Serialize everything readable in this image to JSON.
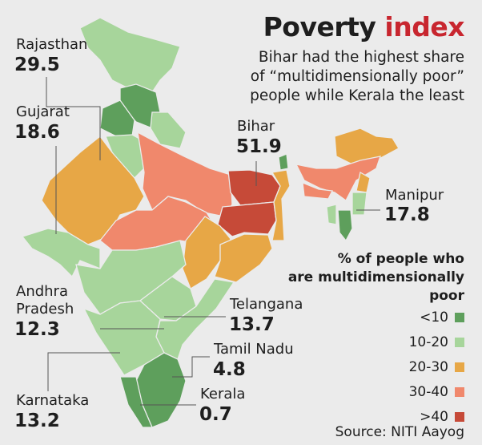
{
  "title": {
    "part1": "Poverty",
    "part2": "index"
  },
  "subtitle": [
    "Bihar had the highest share",
    "of “multidimensionally poor”",
    "people while Kerala the least"
  ],
  "colors": {
    "lt10": "#5e9f5c",
    "10-20": "#a7d59b",
    "20-30": "#e7a746",
    "30-40": "#f0886c",
    "gt40": "#c64a38",
    "accent": "#c8262f"
  },
  "callouts": [
    {
      "state": "Rajasthan",
      "value": "29.5"
    },
    {
      "state": "Gujarat",
      "value": "18.6"
    },
    {
      "state": "Bihar",
      "value": "51.9"
    },
    {
      "state": "Manipur",
      "value": "17.8"
    },
    {
      "state": "Andhra Pradesh",
      "state_lines": [
        "Andhra",
        "Pradesh"
      ],
      "value": "12.3"
    },
    {
      "state": "Telangana",
      "value": "13.7"
    },
    {
      "state": "Tamil Nadu",
      "value": "4.8"
    },
    {
      "state": "Kerala",
      "value": "0.7"
    },
    {
      "state": "Karnataka",
      "value": "13.2"
    }
  ],
  "legend": {
    "title": [
      "% of people who",
      "are multidimensionally",
      "poor"
    ],
    "items": [
      {
        "label": "<10",
        "color": "#5e9f5c"
      },
      {
        "label": "10-20",
        "color": "#a7d59b"
      },
      {
        "label": "20-30",
        "color": "#e7a746"
      },
      {
        "label": "30-40",
        "color": "#f0886c"
      },
      {
        "label": ">40",
        "color": "#c64a38"
      }
    ]
  },
  "source": "Source: NITI Aayog"
}
